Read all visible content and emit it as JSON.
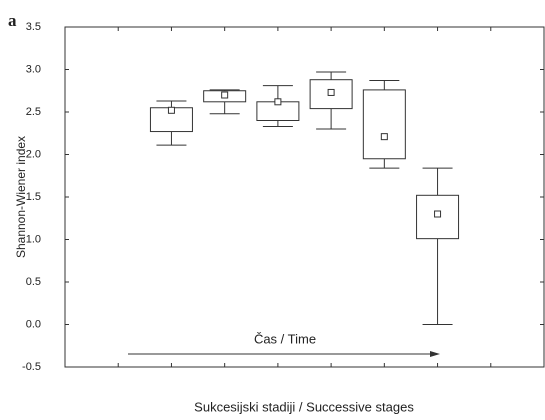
{
  "panel_label": "a",
  "chart_data": {
    "type": "box",
    "y_label": "Shannon-Wiener index",
    "x_label": "Sukcesijski stadiji / Successive stages",
    "annotation": "Čas / Time",
    "x": [
      2,
      3,
      4,
      5,
      6,
      7
    ],
    "min": [
      2.11,
      2.48,
      2.33,
      2.3,
      1.84,
      0.0
    ],
    "q1": [
      2.27,
      2.62,
      2.4,
      2.54,
      1.95,
      1.01
    ],
    "median": [
      2.52,
      2.7,
      2.62,
      2.73,
      2.21,
      1.3
    ],
    "q3": [
      2.55,
      2.75,
      2.62,
      2.88,
      2.76,
      1.52
    ],
    "max": [
      2.63,
      2.76,
      2.81,
      2.97,
      2.87,
      1.84
    ],
    "xlim": [
      0,
      9
    ],
    "xticks": [
      1,
      2,
      3,
      4,
      5,
      6,
      7,
      8
    ],
    "ylim": [
      -0.5,
      3.5
    ],
    "yticks": [
      {
        "value": -0.5,
        "label": "-0.5"
      },
      {
        "value": 0,
        "label": "0.0"
      },
      {
        "value": 0.5,
        "label": "0.5"
      },
      {
        "value": 1,
        "label": "1.0"
      },
      {
        "value": 1.5,
        "label": "1.5"
      },
      {
        "value": 2,
        "label": "2.0"
      },
      {
        "value": 2.5,
        "label": "2.5"
      },
      {
        "value": 3,
        "label": "3.0"
      },
      {
        "value": 3.5,
        "label": "3.5"
      }
    ],
    "color": "#333333"
  }
}
